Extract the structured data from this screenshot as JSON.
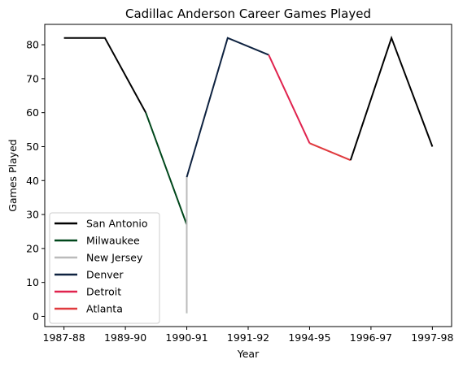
{
  "chart_data": {
    "type": "line",
    "title": "Cadillac Anderson Career Games Played",
    "xlabel": "Year",
    "ylabel": "Games Played",
    "x_ticks": [
      "1987-88",
      "1989-90",
      "1990-91",
      "1991-92",
      "1994-95",
      "1996-97",
      "1997-98"
    ],
    "y_ticks": [
      0,
      10,
      20,
      30,
      40,
      50,
      60,
      70,
      80
    ],
    "ylim": [
      -3,
      86
    ],
    "grid": false,
    "legend_position": "lower-left",
    "series": [
      {
        "name": "San Antonio",
        "color": "#000000",
        "points": [
          [
            0,
            82
          ],
          [
            1,
            82
          ],
          [
            2,
            60
          ]
        ]
      },
      {
        "name": "Milwaukee",
        "color": "#00471b",
        "points": [
          [
            2,
            60
          ],
          [
            3,
            27
          ],
          [
            3,
            1
          ]
        ]
      },
      {
        "name": "New Jersey",
        "color": "#bbbbbb",
        "points": [
          [
            3,
            1
          ],
          [
            3,
            41
          ]
        ]
      },
      {
        "name": "Denver",
        "color": "#0e2240",
        "points": [
          [
            3,
            41
          ],
          [
            4,
            82
          ],
          [
            5,
            77
          ]
        ]
      },
      {
        "name": "Detroit",
        "color": "#e0234e",
        "points": [
          [
            5,
            77
          ],
          [
            6,
            51
          ]
        ]
      },
      {
        "name": "Atlanta",
        "color": "#e03a3e",
        "points": [
          [
            6,
            51
          ],
          [
            7,
            46
          ]
        ]
      },
      {
        "name": "San Antonio",
        "color": "#000000",
        "hide_in_legend": true,
        "points": [
          [
            7,
            46
          ],
          [
            8,
            82
          ],
          [
            9,
            50
          ]
        ]
      }
    ],
    "x_tick_positions": [
      0,
      1.5,
      3,
      4.5,
      6,
      7.5,
      9
    ]
  }
}
